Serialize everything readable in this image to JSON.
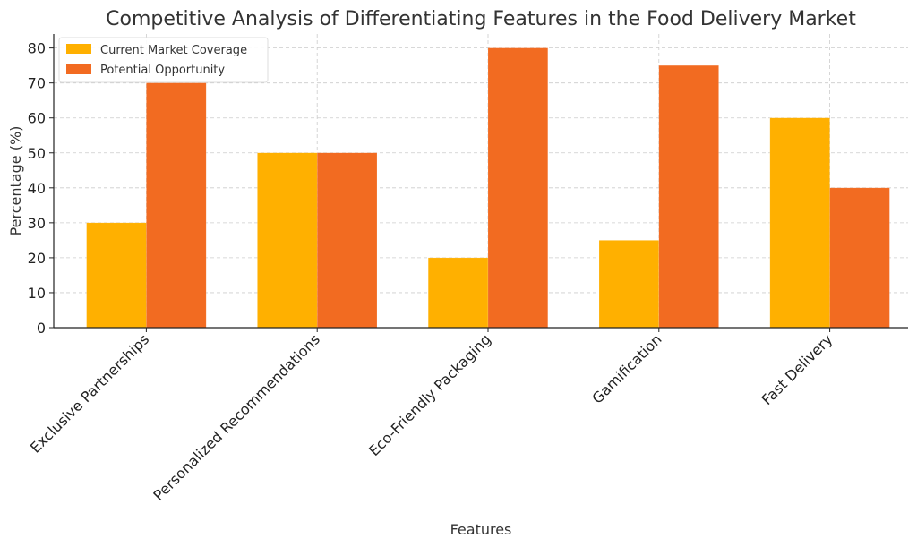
{
  "chart_data": {
    "type": "bar",
    "title": "Competitive Analysis of Differentiating Features in the Food Delivery Market",
    "xlabel": "Features",
    "ylabel": "Percentage (%)",
    "ylim": [
      0,
      84
    ],
    "yticks": [
      0,
      10,
      20,
      30,
      40,
      50,
      60,
      70,
      80
    ],
    "categories": [
      "Exclusive Partnerships",
      "Personalized Recommendations",
      "Eco-Friendly Packaging",
      "Gamification",
      "Fast Delivery"
    ],
    "series": [
      {
        "name": "Current Market Coverage",
        "color": "#FFB000",
        "values": [
          30,
          50,
          20,
          25,
          60
        ]
      },
      {
        "name": "Potential Opportunity",
        "color": "#F26B21",
        "values": [
          70,
          50,
          80,
          75,
          40
        ]
      }
    ],
    "grid": true,
    "legend_position": "top-left"
  }
}
